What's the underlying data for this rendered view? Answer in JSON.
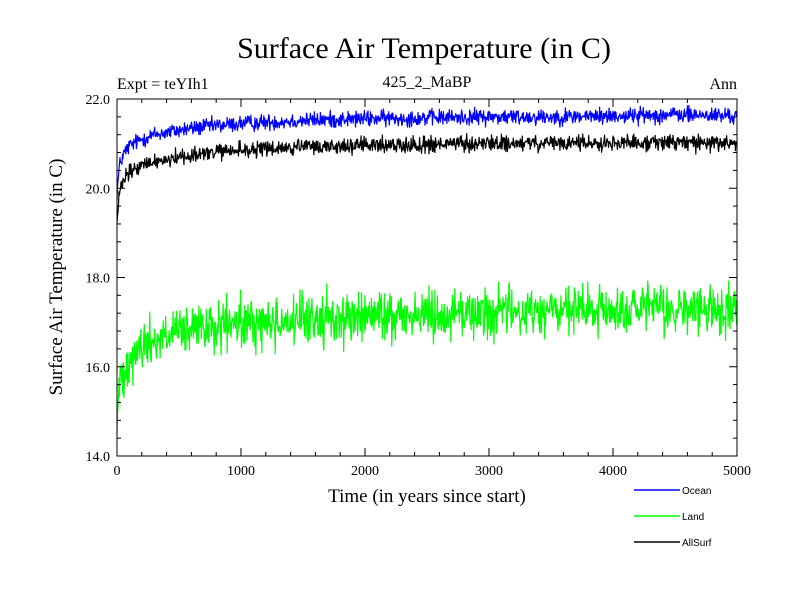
{
  "chart_data": {
    "type": "line",
    "title": "Surface Air Temperature (in C)",
    "subtitle_left": "Expt = teYIh1",
    "subtitle_center": "425_2_MaBP",
    "subtitle_right": "Ann",
    "xlabel": "Time (in years since start)",
    "ylabel": "Surface Air Temperature (in C)",
    "xlim": [
      0,
      5000
    ],
    "ylim": [
      14.0,
      22.0
    ],
    "x_ticks": [
      0,
      1000,
      2000,
      3000,
      4000,
      5000
    ],
    "x_tick_labels": [
      "0",
      "1000",
      "2000",
      "3000",
      "4000",
      "5000"
    ],
    "y_ticks": [
      14.0,
      16.0,
      18.0,
      20.0,
      22.0
    ],
    "y_tick_labels": [
      "14.0",
      "16.0",
      "18.0",
      "20.0",
      "22.0"
    ],
    "legend_position": "bottom-right, below plot",
    "series": [
      {
        "name": "Ocean",
        "color": "#0000ff",
        "x": [
          0,
          20,
          50,
          100,
          200,
          300,
          500,
          700,
          1000,
          1500,
          2000,
          2500,
          3000,
          3500,
          4000,
          4500,
          5000
        ],
        "values": [
          19.9,
          20.5,
          20.75,
          20.95,
          21.1,
          21.2,
          21.3,
          21.38,
          21.45,
          21.52,
          21.56,
          21.58,
          21.6,
          21.6,
          21.62,
          21.65,
          21.62
        ],
        "noise": 0.09
      },
      {
        "name": "Land",
        "color": "#00ff00",
        "x": [
          0,
          20,
          50,
          100,
          200,
          300,
          500,
          700,
          1000,
          1500,
          2000,
          2500,
          3000,
          3500,
          4000,
          4500,
          5000
        ],
        "values": [
          14.7,
          15.6,
          15.95,
          16.2,
          16.45,
          16.6,
          16.75,
          16.85,
          16.95,
          17.05,
          17.12,
          17.18,
          17.22,
          17.25,
          17.25,
          17.28,
          17.25
        ],
        "noise": 0.28
      },
      {
        "name": "AllSurf",
        "color": "#000000",
        "x": [
          0,
          20,
          50,
          100,
          200,
          300,
          500,
          700,
          1000,
          1500,
          2000,
          2500,
          3000,
          3500,
          4000,
          4500,
          5000
        ],
        "values": [
          19.2,
          19.9,
          20.15,
          20.35,
          20.5,
          20.6,
          20.7,
          20.78,
          20.85,
          20.92,
          20.96,
          20.98,
          21.0,
          21.0,
          21.02,
          21.03,
          21.0
        ],
        "noise": 0.09
      }
    ]
  }
}
